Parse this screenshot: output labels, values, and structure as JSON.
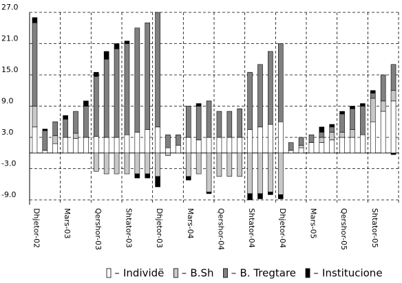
{
  "chart_data": {
    "type": "bar",
    "stacked": true,
    "categories": [
      "Dhjetor-02",
      null,
      null,
      "Mars-03",
      null,
      null,
      "Qershor-03",
      null,
      null,
      "Shtator-03",
      null,
      null,
      "Dhjetor-03",
      null,
      null,
      "Mars-04",
      null,
      null,
      "Qershor-04",
      null,
      null,
      "Shtator-04",
      null,
      null,
      "Dhjetor-04",
      null,
      null,
      "Mars-05",
      null,
      null,
      "Qershor-05",
      null,
      null,
      "Shtator-05",
      null,
      null
    ],
    "series": [
      {
        "name": "Individë",
        "color": "#ffffff",
        "values": [
          5,
          0.5,
          1.8,
          3,
          2.8,
          3,
          3.2,
          3,
          3,
          3.5,
          4,
          4.5,
          5,
          1,
          1.5,
          3,
          2.5,
          3,
          3,
          3,
          3,
          4.5,
          5,
          5.5,
          6,
          0.5,
          1,
          2,
          2,
          2.5,
          3,
          3,
          3.5,
          6,
          8,
          10
        ]
      },
      {
        "name": "B.Sh",
        "color": "#c8c8c8",
        "values": [
          4,
          0,
          1.5,
          0,
          1,
          0,
          -3.5,
          -4,
          -4,
          -4,
          -4,
          -4,
          -4.5,
          -0.5,
          0,
          -4.5,
          -4,
          -7.5,
          -4.5,
          -4.5,
          -4.5,
          -7.8,
          -7.8,
          -7.5,
          -8,
          0,
          0.5,
          0,
          1,
          1.5,
          1,
          1.5,
          0,
          4.5,
          2,
          2
        ]
      },
      {
        "name": "B. Tregtare",
        "color": "#808080",
        "values": [
          16,
          3.8,
          2.7,
          3.5,
          4.2,
          6,
          11.5,
          15,
          17,
          17.5,
          20,
          20.5,
          22,
          2.5,
          2,
          6,
          6.5,
          7,
          5,
          5,
          5.5,
          11,
          12,
          14,
          15,
          1.5,
          1.5,
          1.5,
          1,
          1,
          3.5,
          4,
          5.5,
          1,
          5,
          5
        ]
      },
      {
        "name": "Institucione",
        "color": "#000000",
        "values": [
          1,
          0.3,
          0,
          0.7,
          0,
          1,
          0.8,
          1.5,
          1,
          0.5,
          -0.8,
          -0.8,
          -2,
          0,
          0,
          -0.7,
          0.5,
          -0.3,
          0,
          0,
          0,
          -1.2,
          -1,
          -0.5,
          -0.8,
          0,
          0,
          0,
          1,
          0.5,
          0.5,
          0.5,
          0.5,
          0.5,
          0,
          -0.3
        ]
      }
    ],
    "ylim": [
      -9,
      27
    ],
    "yticks": [
      {
        "value": 27,
        "label": "27.0"
      },
      {
        "value": 21,
        "label": "21.0"
      },
      {
        "value": 15,
        "label": "15.0"
      },
      {
        "value": 9,
        "label": "9.0"
      },
      {
        "value": 3,
        "label": "3.0"
      },
      {
        "value": -3,
        "label": "-3.0"
      },
      {
        "value": -9,
        "label": "-9.0"
      }
    ],
    "grid": true,
    "legend": "bottom"
  }
}
